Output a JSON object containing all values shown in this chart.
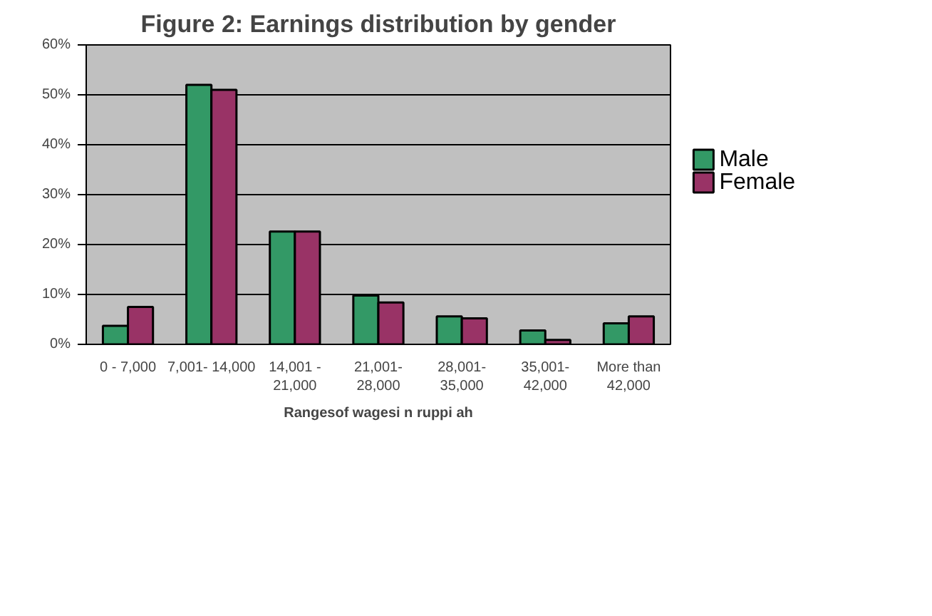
{
  "chart_data": {
    "type": "bar",
    "title": "Figure 2: Earnings distribution by gender",
    "xlabel": "Rangesof wagesi n ruppi ah",
    "categories": [
      "0 - 7,000",
      "7,001- 14,000",
      "14,001 - 21,000",
      "21,001- 28,000",
      "28,001- 35,000",
      "35,001- 42,000",
      "More than 42,000"
    ],
    "series": [
      {
        "name": "Male",
        "color": "#339966",
        "values": [
          3.7,
          52,
          22.6,
          9.8,
          5.6,
          2.8,
          4.2
        ]
      },
      {
        "name": "Female",
        "color": "#993366",
        "values": [
          7.5,
          51,
          22.6,
          8.4,
          5.2,
          0.9,
          5.6
        ]
      }
    ],
    "ylim": [
      0,
      60
    ],
    "yticks": [
      {
        "value": 0,
        "label": "0%"
      },
      {
        "value": 10,
        "label": "10%"
      },
      {
        "value": 20,
        "label": "20%"
      },
      {
        "value": 30,
        "label": "30%"
      },
      {
        "value": 40,
        "label": "40%"
      },
      {
        "value": 50,
        "label": "50%"
      },
      {
        "value": 60,
        "label": "60%"
      }
    ],
    "grid": "y",
    "legend": "right"
  }
}
